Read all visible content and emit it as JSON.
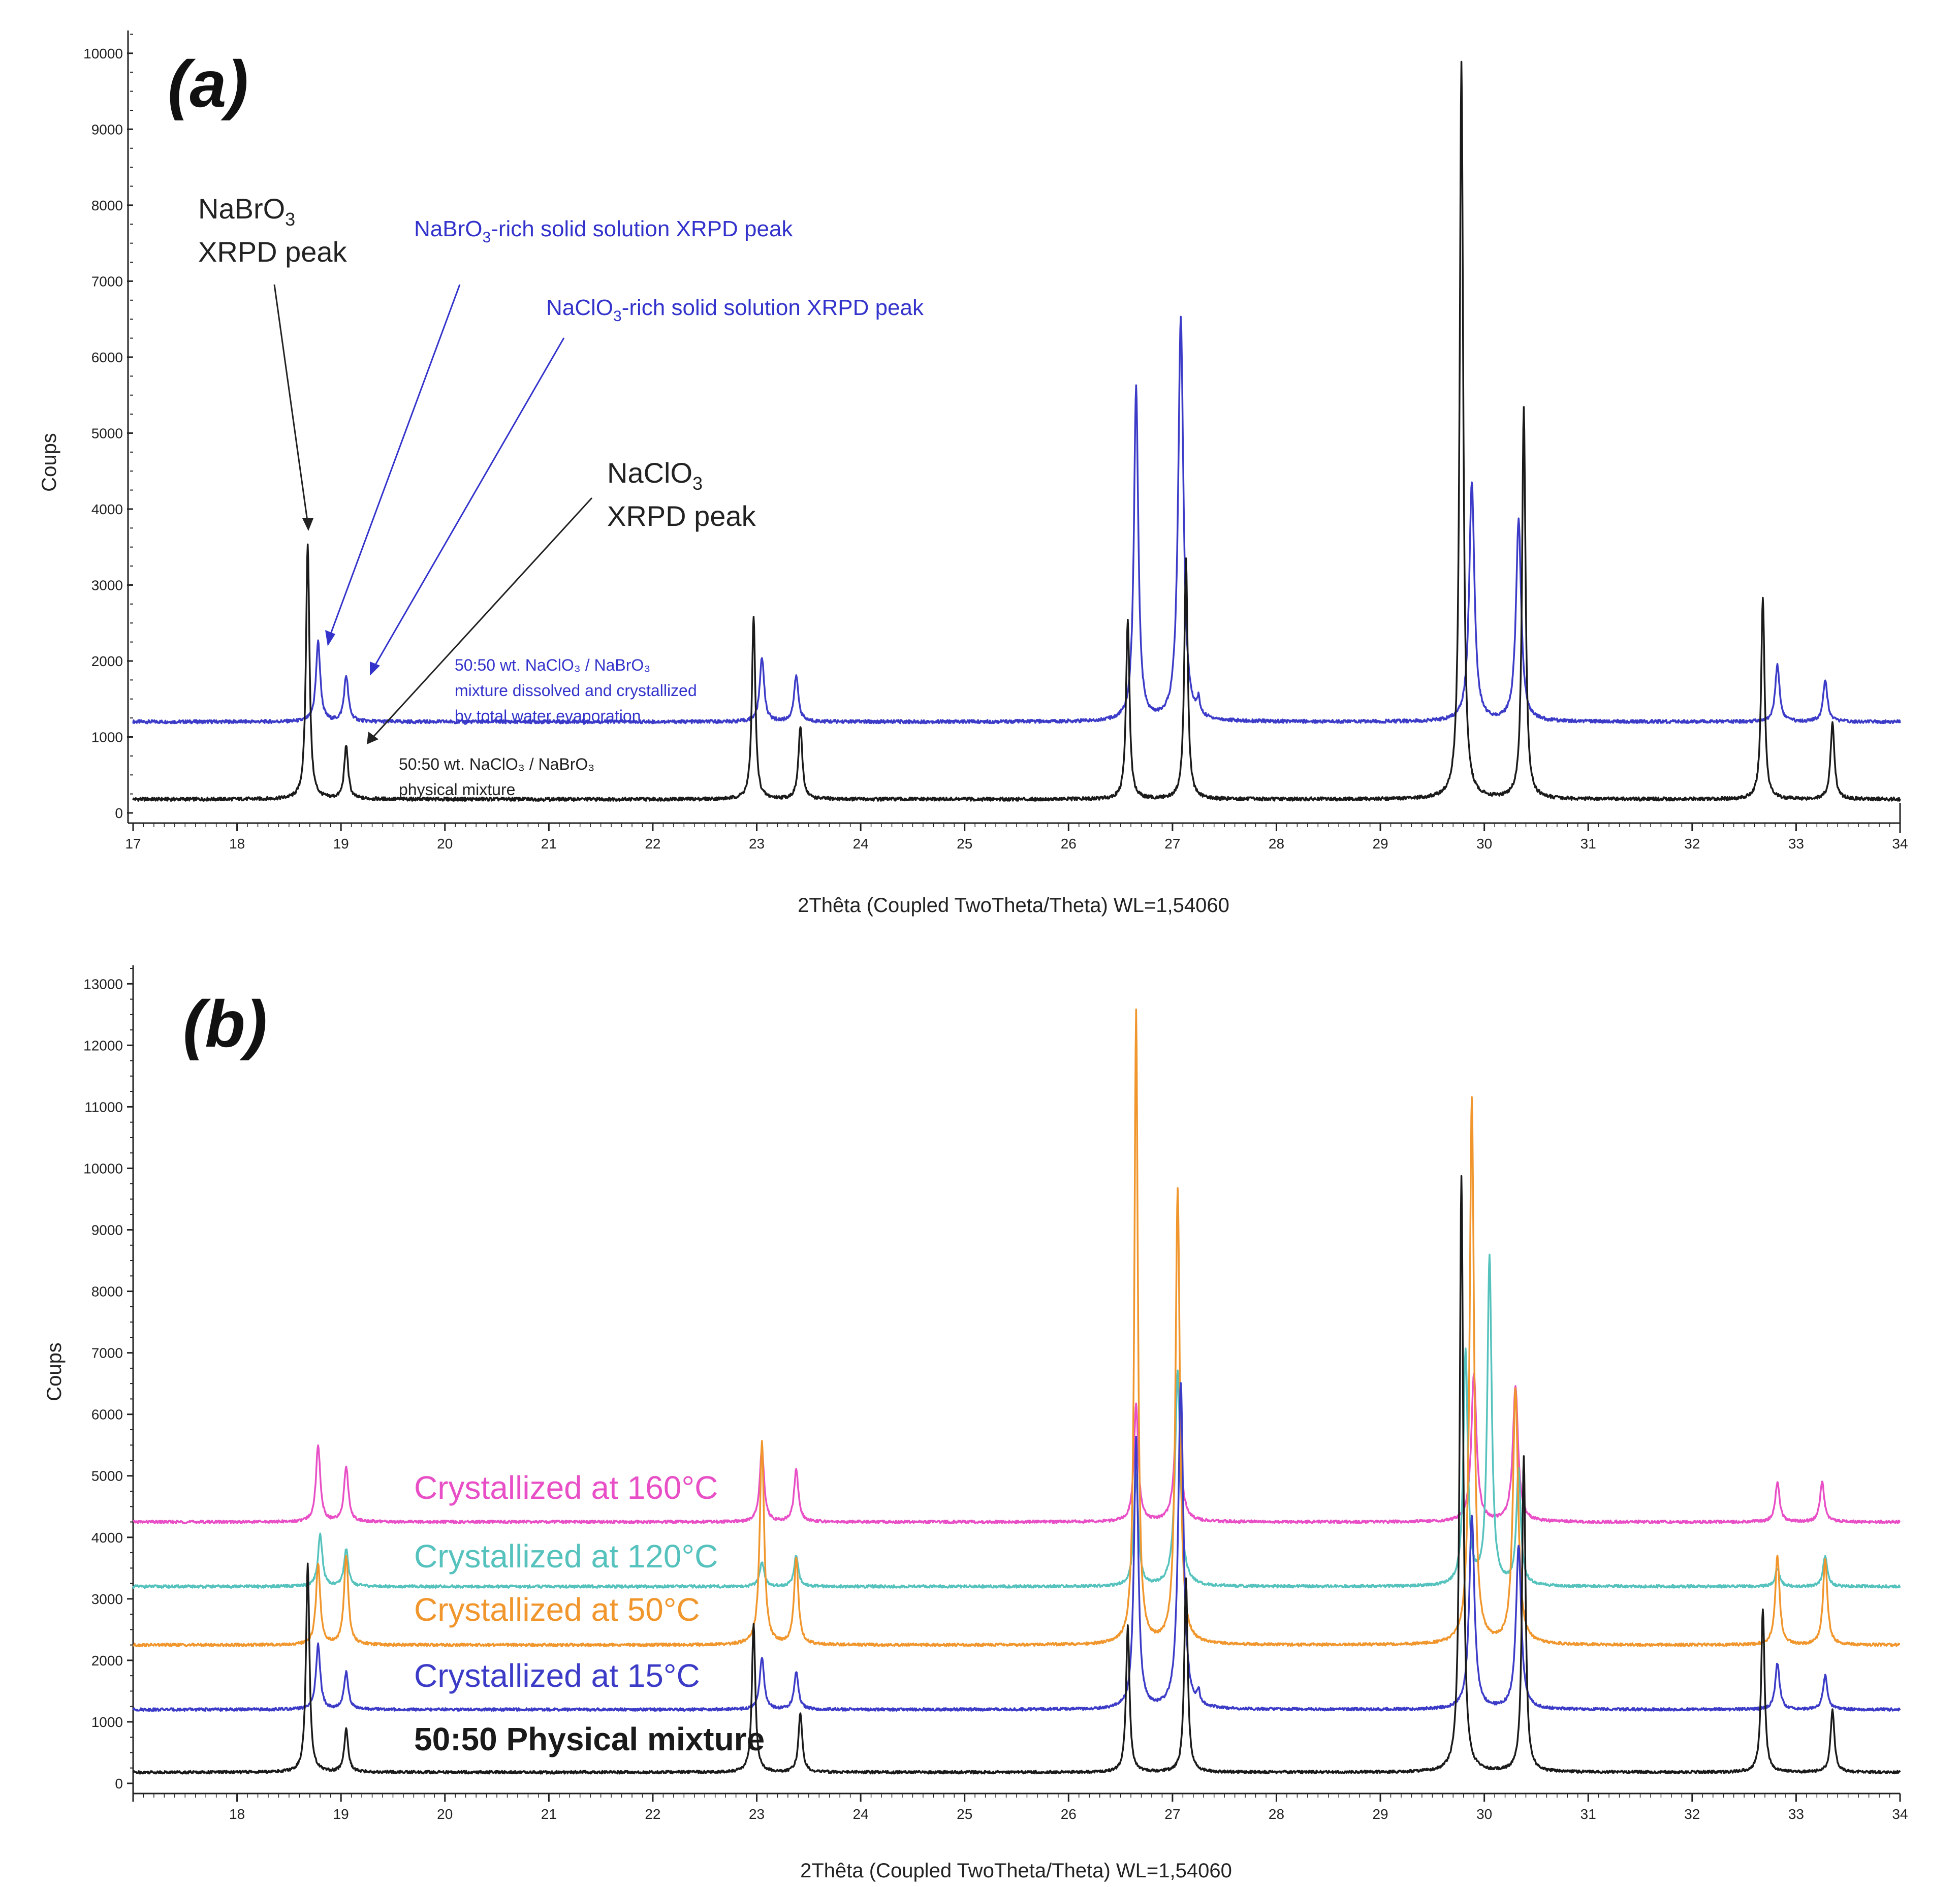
{
  "colors": {
    "physical": "#1a1a1a",
    "c15": "#3b3bc8",
    "c50": "#f0962c",
    "c120": "#55c2bd",
    "c160": "#e84fc6"
  },
  "chart_data": [
    {
      "type": "line",
      "panel_label": "(a)",
      "xlabel": "2Thêta (Coupled TwoTheta/Theta) WL=1,54060",
      "ylabel": "Coups",
      "xlim": [
        17,
        34
      ],
      "ylim": [
        0,
        10300
      ],
      "xticks": [
        17,
        18,
        19,
        20,
        21,
        22,
        23,
        24,
        25,
        26,
        27,
        28,
        29,
        30,
        31,
        32,
        33,
        34
      ],
      "yticks": [
        0,
        1000,
        2000,
        3000,
        4000,
        5000,
        6000,
        7000,
        8000,
        9000,
        10000
      ],
      "series": [
        {
          "key": "c15",
          "baseline": 1200,
          "peaks": [
            [
              18.78,
              1050,
              0.05
            ],
            [
              19.05,
              600,
              0.05
            ],
            [
              23.05,
              850,
              0.05
            ],
            [
              23.38,
              600,
              0.05
            ],
            [
              26.65,
              4400,
              0.05
            ],
            [
              27.08,
              5300,
              0.06
            ],
            [
              27.25,
              200,
              0.03
            ],
            [
              29.88,
              3150,
              0.06
            ],
            [
              30.33,
              2650,
              0.06
            ],
            [
              32.82,
              750,
              0.05
            ],
            [
              33.28,
              550,
              0.05
            ]
          ]
        },
        {
          "key": "physical",
          "baseline": 180,
          "peaks": [
            [
              18.68,
              3370,
              0.04
            ],
            [
              19.05,
              700,
              0.045
            ],
            [
              22.97,
              2400,
              0.04
            ],
            [
              23.42,
              950,
              0.045
            ],
            [
              26.57,
              2370,
              0.04
            ],
            [
              27.13,
              3150,
              0.04
            ],
            [
              29.78,
              9700,
              0.04
            ],
            [
              30.38,
              5150,
              0.04
            ],
            [
              32.68,
              2650,
              0.04
            ],
            [
              33.35,
              1000,
              0.045
            ]
          ]
        }
      ],
      "annotations": {
        "nabro3_peak_line1": "NaBrO",
        "nabro3_peak_sub": "3",
        "nabro3_peak_line2": "XRPD peak",
        "nabro3_rich": "NaBrO",
        "nabro3_rich_sub": "3",
        "nabro3_rich_rest": "-rich solid solution XRPD peak",
        "naclo3_rich": "NaClO",
        "naclo3_rich_sub": "3",
        "naclo3_rich_rest": "-rich solid solution XRPD peak",
        "naclo3_peak_line1": "NaClO",
        "naclo3_peak_sub": "3",
        "naclo3_peak_line2": "XRPD peak",
        "blue_series_line1": "50:50 wt. NaClO₃ / NaBrO₃",
        "blue_series_line2": "mixture dissolved and crystallized",
        "blue_series_line3": "by total water evaporation",
        "black_series_line1": "50:50 wt. NaClO₃ / NaBrO₃",
        "black_series_line2": "physical mixture"
      }
    },
    {
      "type": "line",
      "panel_label": "(b)",
      "xlabel": "2Thêta (Coupled TwoTheta/Theta) WL=1,54060",
      "ylabel": "Coups",
      "xlim": [
        17,
        34
      ],
      "ylim": [
        0,
        13300
      ],
      "xticks": [
        18,
        19,
        20,
        21,
        22,
        23,
        24,
        25,
        26,
        27,
        28,
        29,
        30,
        31,
        32,
        33,
        34
      ],
      "yticks": [
        0,
        1000,
        2000,
        3000,
        4000,
        5000,
        6000,
        7000,
        8000,
        9000,
        10000,
        11000,
        12000,
        13000
      ],
      "series": [
        {
          "key": "c160",
          "name": "Crystallized at 160°C",
          "baseline": 4250,
          "peaks": [
            [
              18.78,
              1250,
              0.05
            ],
            [
              19.05,
              900,
              0.05
            ],
            [
              23.05,
              1200,
              0.05
            ],
            [
              23.38,
              850,
              0.05
            ],
            [
              26.65,
              1900,
              0.05
            ],
            [
              27.05,
              2300,
              0.06
            ],
            [
              29.9,
              2400,
              0.06
            ],
            [
              30.3,
              2200,
              0.06
            ],
            [
              32.82,
              650,
              0.05
            ],
            [
              33.25,
              650,
              0.05
            ]
          ]
        },
        {
          "key": "c120",
          "name": "Crystallized at 120°C",
          "baseline": 3200,
          "peaks": [
            [
              18.8,
              850,
              0.05
            ],
            [
              19.05,
              600,
              0.05
            ],
            [
              23.05,
              400,
              0.05
            ],
            [
              23.38,
              500,
              0.05
            ],
            [
              26.65,
              1800,
              0.05
            ],
            [
              27.05,
              3500,
              0.06
            ],
            [
              29.82,
              3800,
              0.05
            ],
            [
              30.05,
              5350,
              0.05
            ],
            [
              30.33,
              1900,
              0.05
            ],
            [
              32.82,
              300,
              0.05
            ],
            [
              33.28,
              500,
              0.05
            ]
          ]
        },
        {
          "key": "c50",
          "name": "Crystallized at 50°C",
          "baseline": 2250,
          "peaks": [
            [
              18.78,
              1300,
              0.05
            ],
            [
              19.05,
              1450,
              0.05
            ],
            [
              23.05,
              3300,
              0.05
            ],
            [
              23.38,
              1400,
              0.05
            ],
            [
              26.65,
              10300,
              0.04
            ],
            [
              27.05,
              7400,
              0.05
            ],
            [
              29.88,
              8900,
              0.05
            ],
            [
              30.3,
              4150,
              0.06
            ],
            [
              32.82,
              1450,
              0.05
            ],
            [
              33.28,
              1400,
              0.05
            ]
          ]
        },
        {
          "key": "c15",
          "name": "Crystallized at 15°C",
          "baseline": 1200,
          "peaks": [
            [
              18.78,
              1050,
              0.05
            ],
            [
              19.05,
              600,
              0.05
            ],
            [
              23.05,
              850,
              0.05
            ],
            [
              23.38,
              600,
              0.05
            ],
            [
              26.65,
              4400,
              0.05
            ],
            [
              27.08,
              5300,
              0.06
            ],
            [
              27.25,
              200,
              0.03
            ],
            [
              29.88,
              3150,
              0.06
            ],
            [
              30.33,
              2650,
              0.06
            ],
            [
              32.82,
              750,
              0.05
            ],
            [
              33.28,
              550,
              0.05
            ]
          ]
        },
        {
          "key": "physical",
          "name": "50:50 Physical mixture",
          "baseline": 180,
          "peaks": [
            [
              18.68,
              3370,
              0.04
            ],
            [
              19.05,
              700,
              0.045
            ],
            [
              22.97,
              2400,
              0.04
            ],
            [
              23.42,
              950,
              0.045
            ],
            [
              26.57,
              2370,
              0.04
            ],
            [
              27.13,
              3150,
              0.04
            ],
            [
              29.78,
              9700,
              0.04
            ],
            [
              30.38,
              5150,
              0.04
            ],
            [
              32.68,
              2650,
              0.04
            ],
            [
              33.35,
              1000,
              0.045
            ]
          ]
        }
      ]
    }
  ]
}
